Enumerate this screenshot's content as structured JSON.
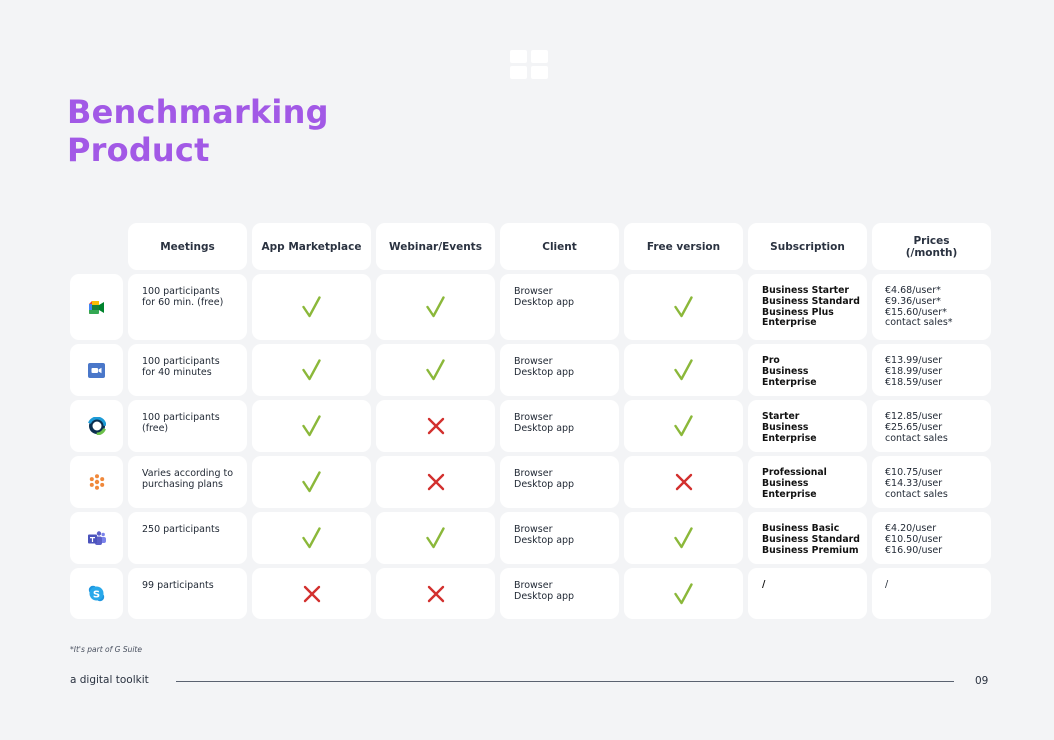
{
  "header": {
    "logo_icon": "window-grid-icon",
    "title_line1": "Benchmarking",
    "title_line2": "Product"
  },
  "table": {
    "columns": [
      {
        "label": "Meetings"
      },
      {
        "label": "App Marketplace"
      },
      {
        "label": "Webinar/Events"
      },
      {
        "label": "Client"
      },
      {
        "label": "Free version"
      },
      {
        "label": "Subscription"
      },
      {
        "label": "Prices\n(/month)"
      }
    ],
    "rows": [
      {
        "product_icon": "google-meet-icon",
        "meetings": "100 participants\nfor 60 min. (free)",
        "app_marketplace": "yes",
        "webinar_events": "yes",
        "client": "Browser\nDesktop app",
        "free_version": "yes",
        "subscription": "Business Starter\nBusiness Standard\nBusiness Plus\nEnterprise",
        "prices": "€4.68/user*\n€9.36/user*\n€15.60/user*\ncontact sales*"
      },
      {
        "product_icon": "zoom-icon",
        "meetings": "100 participants\nfor 40 minutes",
        "app_marketplace": "yes",
        "webinar_events": "yes",
        "client": "Browser\nDesktop app",
        "free_version": "yes",
        "subscription": "Pro\nBusiness\nEnterprise",
        "prices": "€13.99/user\n€18.99/user\n€18.59/user"
      },
      {
        "product_icon": "webex-icon",
        "meetings": "100 participants\n(free)",
        "app_marketplace": "yes",
        "webinar_events": "no",
        "client": "Browser\nDesktop app",
        "free_version": "yes",
        "subscription": "Starter\nBusiness\nEnterprise",
        "prices": "€12.85/user\n€25.65/user\ncontact sales"
      },
      {
        "product_icon": "gotomeeting-icon",
        "meetings": "Varies according to\npurchasing plans",
        "app_marketplace": "yes",
        "webinar_events": "no",
        "client": "Browser\nDesktop app",
        "free_version": "no",
        "subscription": "Professional\nBusiness\nEnterprise",
        "prices": "€10.75/user\n€14.33/user\ncontact sales"
      },
      {
        "product_icon": "microsoft-teams-icon",
        "meetings": "250 participants",
        "app_marketplace": "yes",
        "webinar_events": "yes",
        "client": "Browser\nDesktop app",
        "free_version": "yes",
        "subscription": "Business Basic\nBusiness Standard\nBusiness Premium",
        "prices": "€4.20/user\n€10.50/user\n€16.90/user"
      },
      {
        "product_icon": "skype-icon",
        "meetings": "99 participants",
        "app_marketplace": "no",
        "webinar_events": "no",
        "client": "Browser\nDesktop app",
        "free_version": "yes",
        "subscription": "/",
        "prices": "/"
      }
    ]
  },
  "colors": {
    "title": "#a259e6",
    "check": "#8bb83a",
    "cross": "#d2302e",
    "background": "#f3f4f6",
    "card": "#ffffff"
  },
  "footer": {
    "footnote": "*It's part of G Suite",
    "label": "a digital toolkit",
    "page_number": "09"
  }
}
